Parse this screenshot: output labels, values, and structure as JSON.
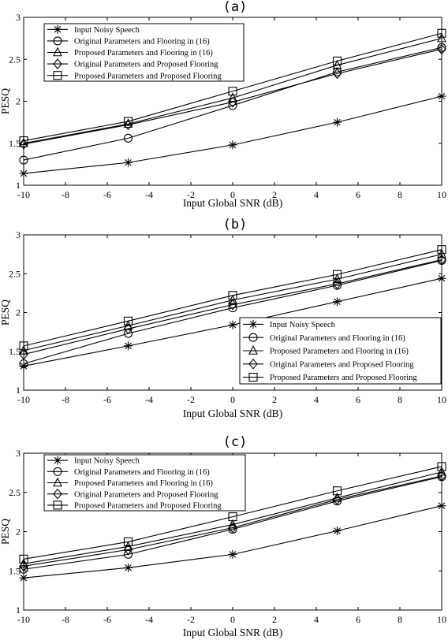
{
  "chart_data": [
    {
      "panel": "(a)",
      "type": "line",
      "title": "(a)",
      "xlabel": "Input Global SNR (dB)",
      "ylabel": "PESQ",
      "xlim": [
        -10,
        10
      ],
      "ylim": [
        1,
        3
      ],
      "xticks": [
        -10,
        -8,
        -6,
        -4,
        -2,
        0,
        2,
        4,
        6,
        8,
        10
      ],
      "yticks": [
        1,
        1.5,
        2,
        2.5,
        3
      ],
      "legend_position": "top-left",
      "x": [
        -10,
        -5,
        0,
        5,
        10
      ],
      "series": [
        {
          "name": "Input Noisy Speech",
          "marker": "asterisk",
          "values": [
            1.14,
            1.27,
            1.48,
            1.75,
            2.06
          ]
        },
        {
          "name": "Original Parameters and Flooring in (16)",
          "marker": "circle",
          "values": [
            1.3,
            1.56,
            1.95,
            2.35,
            2.64
          ]
        },
        {
          "name": "Proposed Parameters and Flooring in (16)",
          "marker": "triangle",
          "values": [
            1.5,
            1.73,
            2.04,
            2.43,
            2.75
          ]
        },
        {
          "name": "Original Parameters and Proposed Flooring",
          "marker": "diamond",
          "values": [
            1.49,
            1.72,
            1.99,
            2.33,
            2.62
          ]
        },
        {
          "name": "Proposed Parameters and Proposed Flooring",
          "marker": "square",
          "values": [
            1.53,
            1.76,
            2.12,
            2.48,
            2.81
          ]
        }
      ]
    },
    {
      "panel": "(b)",
      "type": "line",
      "title": "(b)",
      "xlabel": "Input Global SNR (dB)",
      "ylabel": "PESQ",
      "xlim": [
        -10,
        10
      ],
      "ylim": [
        1,
        3
      ],
      "xticks": [
        -10,
        -8,
        -6,
        -4,
        -2,
        0,
        2,
        4,
        6,
        8,
        10
      ],
      "yticks": [
        1,
        1.5,
        2,
        2.5,
        3
      ],
      "legend_position": "bottom-right",
      "x": [
        -10,
        -5,
        0,
        5,
        10
      ],
      "series": [
        {
          "name": "Input Noisy Speech",
          "marker": "asterisk",
          "values": [
            1.31,
            1.57,
            1.84,
            2.14,
            2.44
          ]
        },
        {
          "name": "Original Parameters and Flooring in (16)",
          "marker": "circle",
          "values": [
            1.34,
            1.73,
            2.06,
            2.35,
            2.67
          ]
        },
        {
          "name": "Proposed Parameters and Flooring in (16)",
          "marker": "triangle",
          "values": [
            1.51,
            1.83,
            2.16,
            2.43,
            2.75
          ]
        },
        {
          "name": "Original Parameters and Proposed Flooring",
          "marker": "diamond",
          "values": [
            1.46,
            1.79,
            2.1,
            2.37,
            2.68
          ]
        },
        {
          "name": "Proposed Parameters and Proposed Flooring",
          "marker": "square",
          "values": [
            1.57,
            1.89,
            2.22,
            2.49,
            2.81
          ]
        }
      ]
    },
    {
      "panel": "(c)",
      "type": "line",
      "title": "(c)",
      "xlabel": "Input Global SNR (dB)",
      "ylabel": "PESQ",
      "xlim": [
        -10,
        10
      ],
      "ylim": [
        1,
        3
      ],
      "xticks": [
        -10,
        -8,
        -6,
        -4,
        -2,
        0,
        2,
        4,
        6,
        8,
        10
      ],
      "yticks": [
        1,
        1.5,
        2,
        2.5,
        3
      ],
      "legend_position": "top-left",
      "x": [
        -10,
        -5,
        0,
        5,
        10
      ],
      "series": [
        {
          "name": "Input Noisy Speech",
          "marker": "asterisk",
          "values": [
            1.41,
            1.54,
            1.71,
            2.01,
            2.33
          ]
        },
        {
          "name": "Original Parameters and Flooring in (16)",
          "marker": "circle",
          "values": [
            1.52,
            1.71,
            2.03,
            2.39,
            2.7
          ]
        },
        {
          "name": "Proposed Parameters and Flooring in (16)",
          "marker": "triangle",
          "values": [
            1.59,
            1.81,
            2.09,
            2.43,
            2.76
          ]
        },
        {
          "name": "Original Parameters and Proposed Flooring",
          "marker": "diamond",
          "values": [
            1.56,
            1.77,
            2.05,
            2.41,
            2.71
          ]
        },
        {
          "name": "Proposed Parameters and Proposed Flooring",
          "marker": "square",
          "values": [
            1.65,
            1.87,
            2.19,
            2.52,
            2.83
          ]
        }
      ]
    }
  ]
}
